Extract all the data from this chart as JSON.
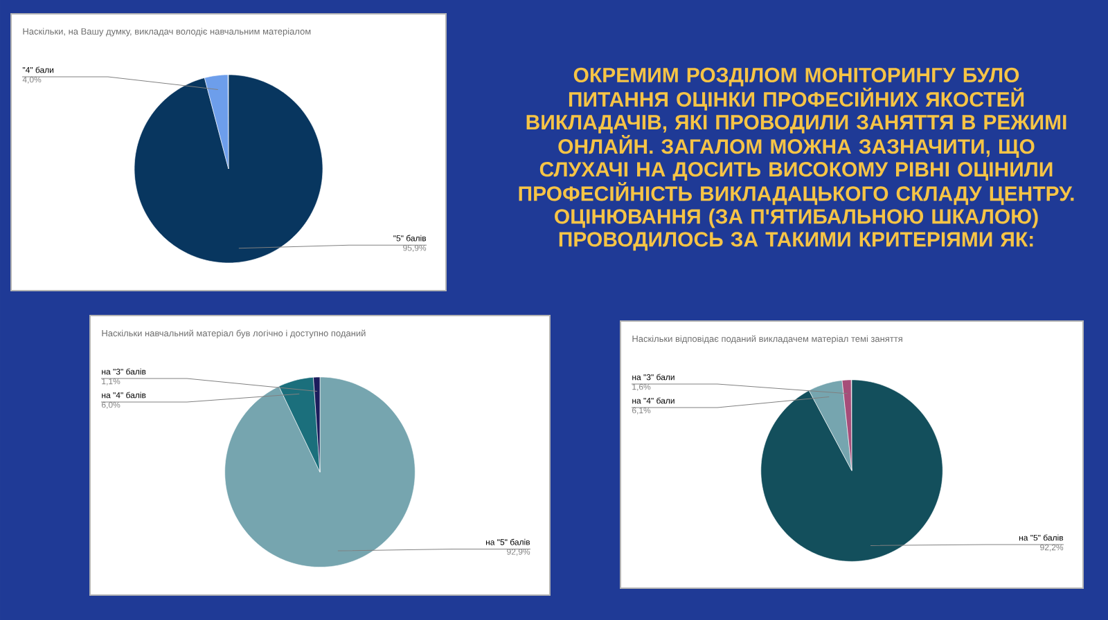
{
  "chart_data": [
    {
      "type": "pie",
      "title": "Наскільки, на Вашу думку, викладач володіє навчальним матеріалом",
      "categories": [
        "\"5\" балів",
        "\"4\" бали"
      ],
      "values": [
        95.9,
        4.0
      ],
      "value_labels": [
        "95,9%",
        "4,0%"
      ],
      "colors": [
        "#08365f",
        "#6d9eeb"
      ]
    },
    {
      "type": "other",
      "title": "ОКРЕМИМ РОЗДІЛОМ МОНІТОРИНГУ БУЛО ПИТАННЯ ОЦІНКИ ПРОФЕСІЙНИХ ЯКОСТЕЙ ВИКЛАДАЧІВ, ЯКІ ПРОВОДИЛИ ЗАНЯТТЯ В РЕЖИМІ ОНЛАЙН. ЗАГАЛОМ МОЖНА ЗАЗНАЧИТИ, ЩО СЛУХАЧІ НА ДОСИТЬ ВИСОКОМУ РІВНІ ОЦІНИЛИ ПРОФЕСІЙНІСТЬ ВИКЛАДАЦЬКОГО СКЛАДУ ЦЕНТРУ. ОЦІНЮВАННЯ (ЗА П'ЯТИБАЛЬНОЮ ШКАЛОЮ) ПРОВОДИЛОСЬ ЗА ТАКИМИ КРИТЕРІЯМИ ЯК:"
    },
    {
      "type": "pie",
      "title": "Наскільки навчальний матеріал був логічно і доступно поданий",
      "categories": [
        "на \"5\" балів",
        "на \"4\" балів",
        "на \"3\" балів"
      ],
      "values": [
        92.9,
        6.0,
        1.1
      ],
      "value_labels": [
        "92,9%",
        "6,0%",
        "1,1%"
      ],
      "colors": [
        "#76a5af",
        "#1b6f7c",
        "#1c1c5c"
      ]
    },
    {
      "type": "pie",
      "title": "Наскільки відповідає поданий викладачем матеріал темі заняття",
      "categories": [
        "на \"5\" балів",
        "на \"4\" бали",
        "на \"3\" бали"
      ],
      "values": [
        92.2,
        6.1,
        1.6
      ],
      "value_labels": [
        "92,2%",
        "6,1%",
        "1,6%"
      ],
      "colors": [
        "#134f5c",
        "#76a5af",
        "#a64d79"
      ]
    }
  ]
}
